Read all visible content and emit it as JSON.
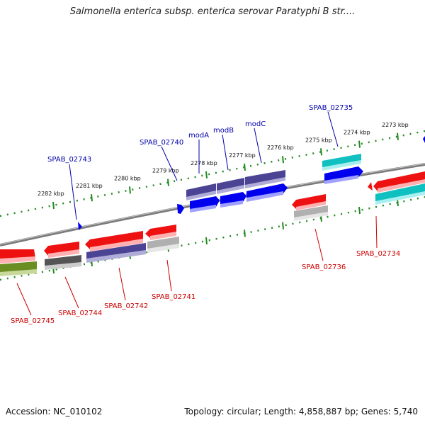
{
  "title": "Salmonella enterica subsp. enterica serovar Paratyphi B str....",
  "footer": {
    "accession": "Accession: NC_010102",
    "info": "Topology: circular; Length: 4,858,887 bp; Genes: 5,740"
  },
  "colors": {
    "backbone": "#8a8a8a",
    "ruler": "#228b22",
    "label_top": "#0000aa",
    "label_bottom": "#cc0000",
    "red": "#ee1111",
    "blue": "#0000ee",
    "purple": "#4b4494",
    "cyan": "#10c0c0",
    "grey": "#555555",
    "silver": "#b0b0b0",
    "olive": "#6b8e23"
  },
  "ruler_ticks": [
    {
      "kbp": 2282,
      "label": "2282 kbp"
    },
    {
      "kbp": 2281,
      "label": "2281 kbp"
    },
    {
      "kbp": 2280,
      "label": "2280 kbp"
    },
    {
      "kbp": 2279,
      "label": "2279 kbp"
    },
    {
      "kbp": 2278,
      "label": "2278 kbp"
    },
    {
      "kbp": 2277,
      "label": "2277 kbp"
    },
    {
      "kbp": 2276,
      "label": "2276 kbp"
    },
    {
      "kbp": 2275,
      "label": "2275 kbp"
    },
    {
      "kbp": 2274,
      "label": "2274 kbp"
    },
    {
      "kbp": 2273,
      "label": "2273 kbp"
    }
  ],
  "genes_top": [
    {
      "id": "SPAB_02743",
      "label": "SPAB_02743"
    },
    {
      "id": "SPAB_02740",
      "label": "SPAB_02740"
    },
    {
      "id": "modA",
      "label": "modA"
    },
    {
      "id": "modB",
      "label": "modB"
    },
    {
      "id": "modC",
      "label": "modC"
    },
    {
      "id": "SPAB_02735",
      "label": "SPAB_02735"
    }
  ],
  "genes_bottom": [
    {
      "id": "SPAB_02745",
      "label": "SPAB_02745"
    },
    {
      "id": "SPAB_02744",
      "label": "SPAB_02744"
    },
    {
      "id": "SPAB_02742",
      "label": "SPAB_02742"
    },
    {
      "id": "SPAB_02741",
      "label": "SPAB_02741"
    },
    {
      "id": "SPAB_02736",
      "label": "SPAB_02736"
    },
    {
      "id": "SPAB_02734",
      "label": "SPAB_02734"
    }
  ]
}
